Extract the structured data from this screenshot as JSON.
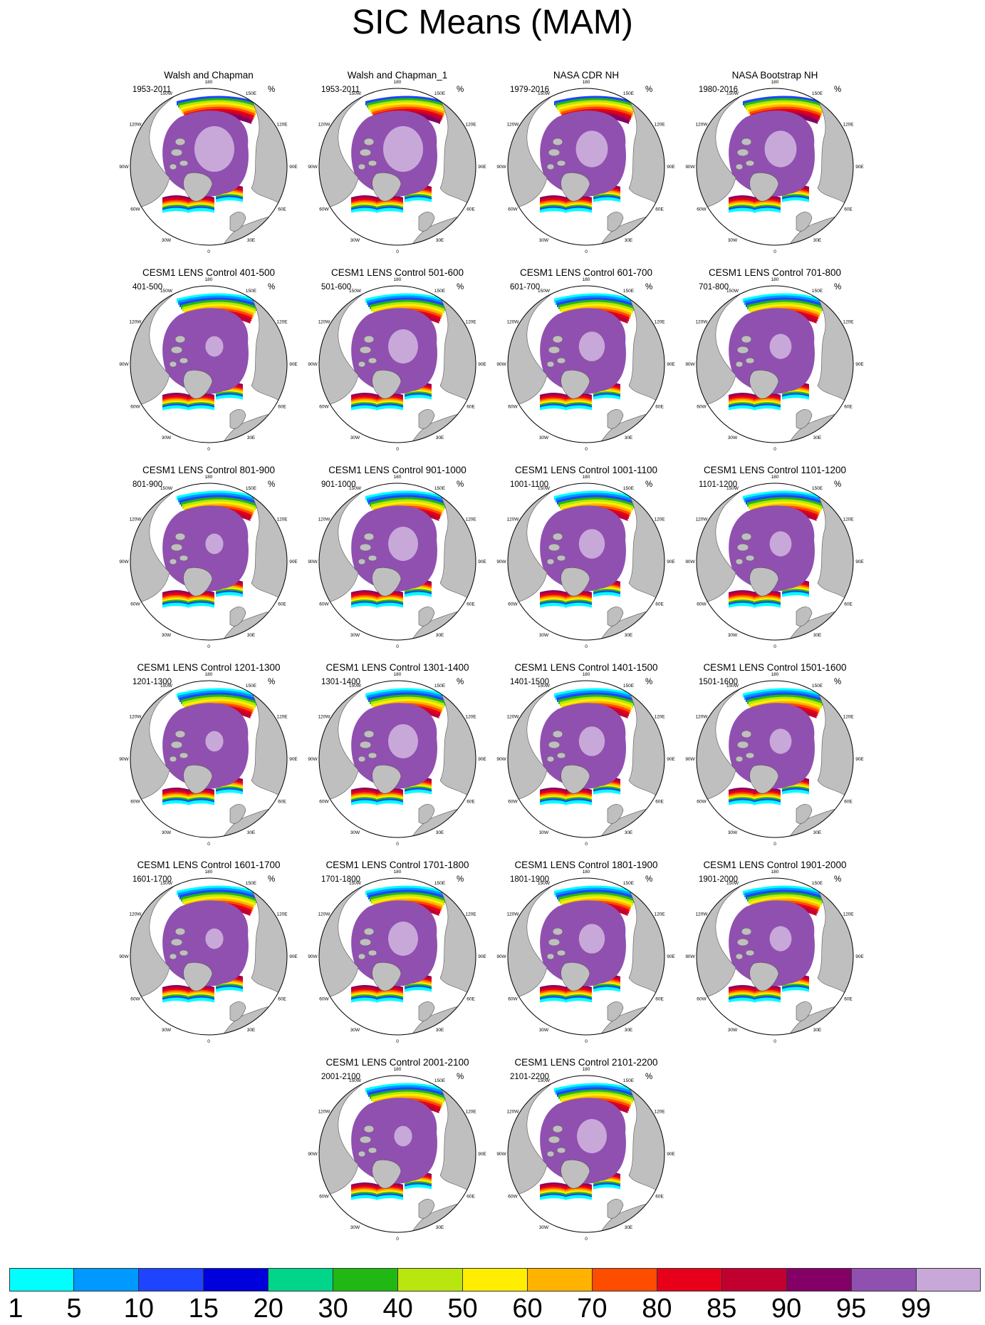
{
  "title": "SIC Means (MAM)",
  "unit": "%",
  "longitude_labels": [
    "180",
    "150E",
    "120E",
    "90E",
    "60E",
    "30E",
    "0",
    "30W",
    "60W",
    "90W",
    "120W",
    "150W"
  ],
  "panels": [
    {
      "title": "Walsh and Chapman",
      "period": "1953-2011",
      "style": "obs"
    },
    {
      "title": "Walsh and Chapman_1",
      "period": "1953-2011",
      "style": "obs"
    },
    {
      "title": "NASA CDR NH",
      "period": "1979-2016",
      "style": "sat"
    },
    {
      "title": "NASA Bootstrap NH",
      "period": "1980-2016",
      "style": "sat"
    },
    {
      "title": "CESM1 LENS Control 401-500",
      "period": "401-500",
      "style": "model"
    },
    {
      "title": "CESM1 LENS Control 501-600",
      "period": "501-600",
      "style": "model"
    },
    {
      "title": "CESM1 LENS Control 601-700",
      "period": "601-700",
      "style": "model"
    },
    {
      "title": "CESM1 LENS Control 701-800",
      "period": "701-800",
      "style": "model"
    },
    {
      "title": "CESM1 LENS Control 801-900",
      "period": "801-900",
      "style": "model"
    },
    {
      "title": "CESM1 LENS Control 901-1000",
      "period": "901-1000",
      "style": "model"
    },
    {
      "title": "CESM1 LENS Control 1001-1100",
      "period": "1001-1100",
      "style": "model"
    },
    {
      "title": "CESM1 LENS Control 1101-1200",
      "period": "1101-1200",
      "style": "model"
    },
    {
      "title": "CESM1 LENS Control 1201-1300",
      "period": "1201-1300",
      "style": "model"
    },
    {
      "title": "CESM1 LENS Control 1301-1400",
      "period": "1301-1400",
      "style": "model"
    },
    {
      "title": "CESM1 LENS Control 1401-1500",
      "period": "1401-1500",
      "style": "model"
    },
    {
      "title": "CESM1 LENS Control 1501-1600",
      "period": "1501-1600",
      "style": "model"
    },
    {
      "title": "CESM1 LENS Control 1601-1700",
      "period": "1601-1700",
      "style": "model"
    },
    {
      "title": "CESM1 LENS Control 1701-1800",
      "period": "1701-1800",
      "style": "model"
    },
    {
      "title": "CESM1 LENS Control 1801-1900",
      "period": "1801-1900",
      "style": "model"
    },
    {
      "title": "CESM1 LENS Control 1901-2000",
      "period": "1901-2000",
      "style": "model"
    },
    {
      "title": "CESM1 LENS Control 2001-2100",
      "period": "2001-2100",
      "style": "model"
    },
    {
      "title": "CESM1 LENS Control 2101-2200",
      "period": "2101-2200",
      "style": "model"
    }
  ],
  "colorbar": {
    "labels": [
      "1",
      "5",
      "10",
      "15",
      "20",
      "30",
      "40",
      "50",
      "60",
      "70",
      "80",
      "85",
      "90",
      "95",
      "99"
    ],
    "colors": [
      "#00ffff",
      "#0099ff",
      "#1f44ff",
      "#0000dd",
      "#00d58a",
      "#22b814",
      "#b8e60e",
      "#ffee00",
      "#ffb300",
      "#ff4d00",
      "#e8001b",
      "#c20030",
      "#850066",
      "#9050b0",
      "#c8a8d8"
    ]
  }
}
